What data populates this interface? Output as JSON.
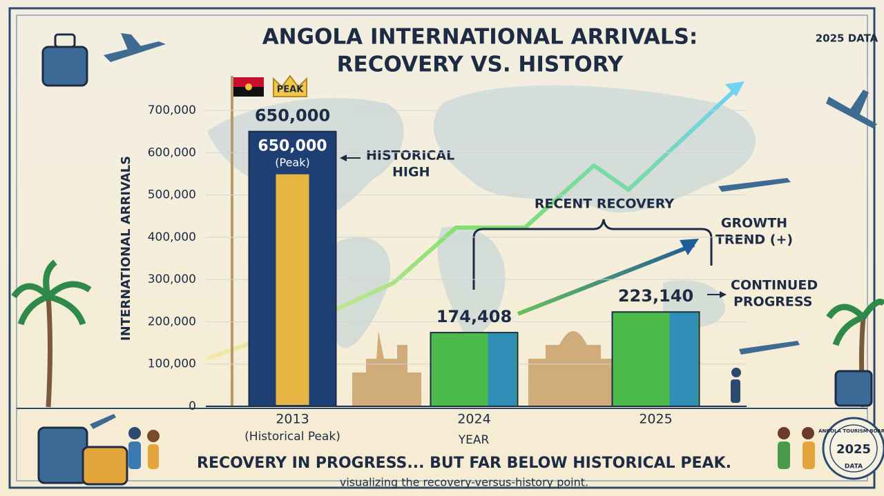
{
  "chart_data": {
    "type": "bar",
    "title": [
      "ANGOLA INTERNATIONAL ARRIVALS:",
      "RECOVERY VS. HISTORY"
    ],
    "corner_label": "2025 DATA",
    "y_label": "INTERNATIONAL ARRIVALS",
    "x_label": "YEAR",
    "categories": [
      "2013",
      "2024",
      "2025"
    ],
    "category_notes": [
      "(Historical Peak)",
      null,
      null
    ],
    "values": [
      650000,
      174408,
      223140
    ],
    "value_labels": [
      "650,000",
      "174,408",
      "223,140"
    ],
    "colors": [
      "#1d3f73",
      "#4dbb4c",
      "#4dbb4c"
    ],
    "ylim": [
      0,
      700000
    ],
    "yticks": [
      0,
      {
        "value": 100000,
        "label": "100,000"
      },
      {
        "value": 200000,
        "label": "200,000"
      },
      {
        "value": 300000,
        "label": "300,000"
      },
      {
        "value": 400000,
        "label": "400,000"
      },
      {
        "value": 500000,
        "label": "500,000"
      },
      {
        "value": 600000,
        "label": "600,000"
      },
      {
        "value": 700000,
        "label": "700,000"
      }
    ],
    "grid": true,
    "annotations": {
      "peak_badge": "PEAK",
      "peak_note": "(Peak)",
      "historical_high": [
        "HISTORICAL",
        "HIGH"
      ],
      "recent_recovery": "RECENT RECOVERY",
      "growth_trend": [
        "GROWTH",
        "TREND (+)"
      ],
      "continued_progress": [
        "CONTINUED",
        "PROGRESS"
      ]
    },
    "headline": "RECOVERY IN PROGRESS... BUT FAR BELOW HISTORICAL PEAK.",
    "subtitle": "visualizing the recovery-versus-history point.",
    "badge": [
      "ANGOLA TOURISM BOARD",
      "2025",
      "DATA"
    ]
  }
}
